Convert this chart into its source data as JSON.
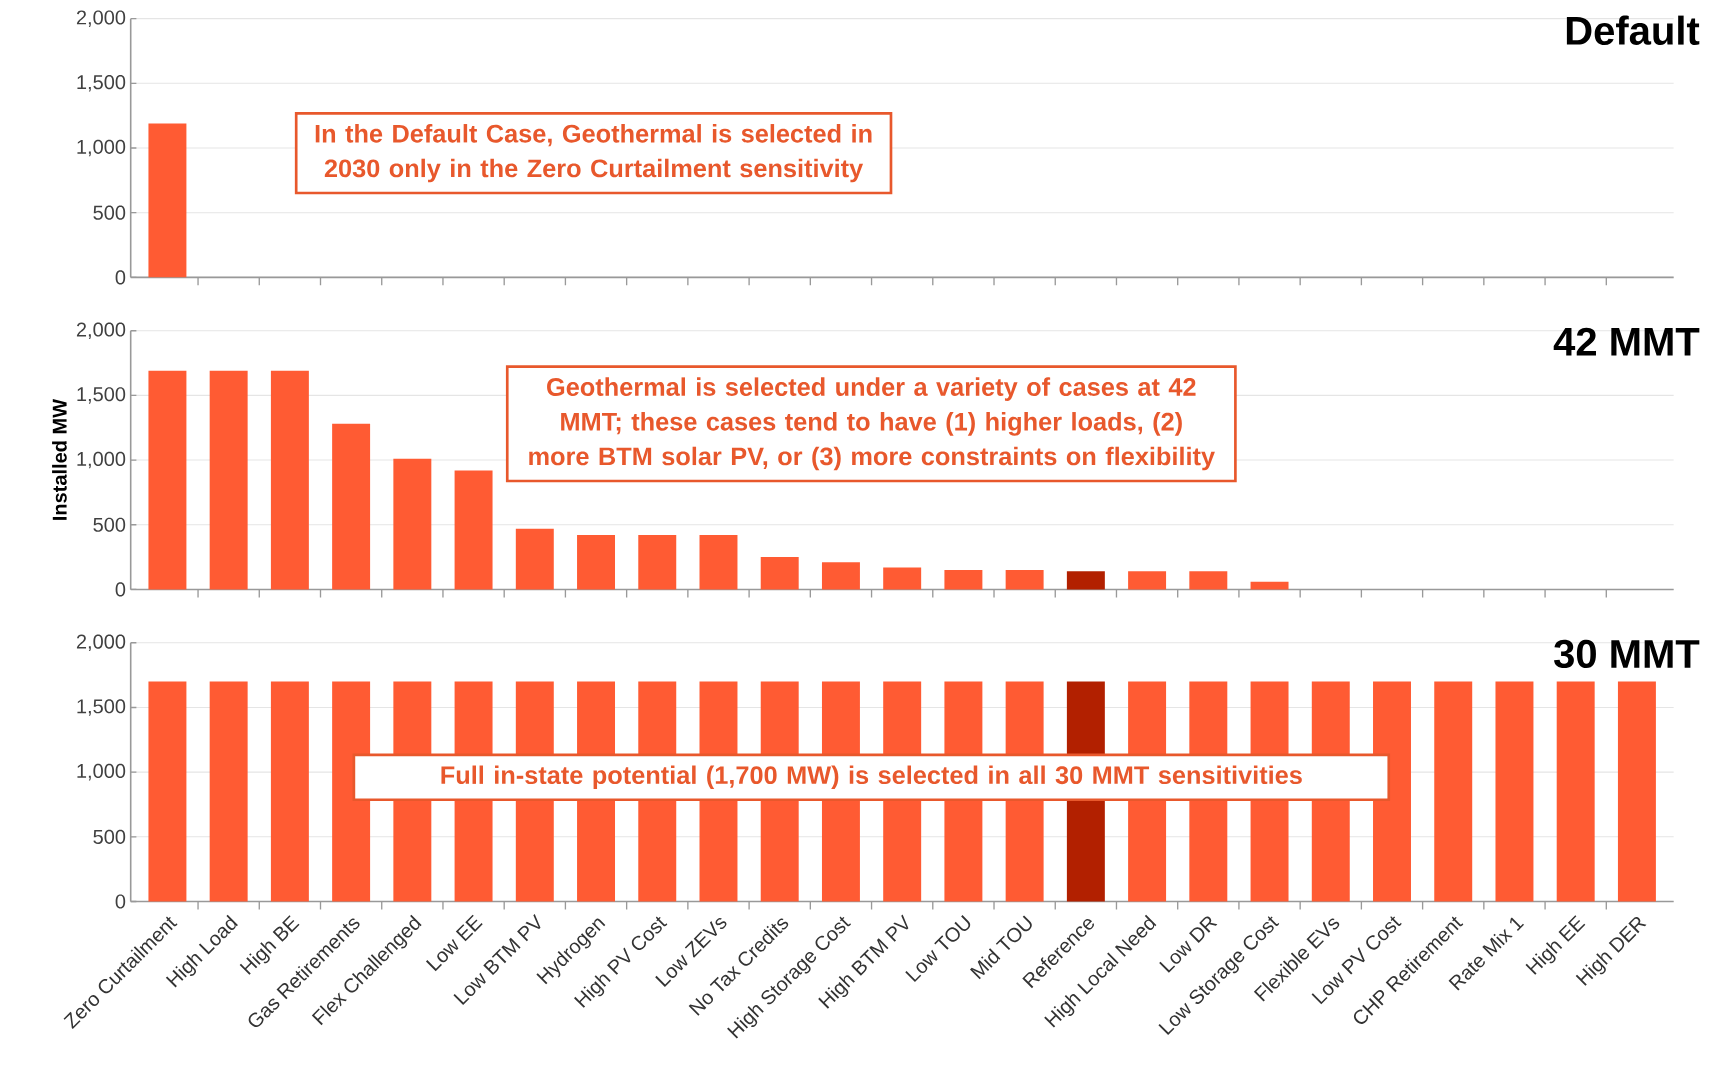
{
  "chart_data": [
    {
      "type": "bar",
      "title": "Default",
      "categories": [
        null,
        null,
        null,
        null,
        null,
        null,
        null,
        null,
        null,
        null,
        null,
        null,
        null,
        null,
        null,
        null,
        null,
        null,
        null,
        null,
        null,
        null,
        null,
        null,
        null
      ],
      "values": [
        1190,
        0,
        0,
        0,
        0,
        0,
        0,
        0,
        0,
        0,
        0,
        0,
        0,
        0,
        0,
        0,
        0,
        0,
        0,
        0,
        0,
        0,
        0,
        0,
        0
      ],
      "colors": [
        "#ff5b33",
        "#ff5b33",
        "#ff5b33",
        "#ff5b33",
        "#ff5b33",
        "#ff5b33",
        "#ff5b33",
        "#ff5b33",
        "#ff5b33",
        "#ff5b33",
        "#ff5b33",
        "#ff5b33",
        "#ff5b33",
        "#ff5b33",
        "#ff5b33",
        "#b22000",
        "#ff5b33",
        "#ff5b33",
        "#ff5b33",
        "#ff5b33",
        "#ff5b33",
        "#ff5b33",
        "#ff5b33",
        "#ff5b33",
        "#ff5b33"
      ],
      "ylim": [
        0,
        2000
      ],
      "yticks": [
        0,
        {
          "value": 500,
          "label": "500"
        },
        {
          "value": 1000,
          "label": "1,000"
        },
        {
          "value": 1500,
          "label": "1,500"
        },
        {
          "value": 2000,
          "label": "2,000"
        }
      ],
      "grid": "y",
      "annotations": [
        "In the Default Case, Geothermal is selected in 2030 only in the Zero Curtailment sensitivity"
      ]
    },
    {
      "type": "bar",
      "title": "42 MMT",
      "ylabel": "Installed MW",
      "categories": [
        null,
        null,
        null,
        null,
        null,
        null,
        null,
        null,
        null,
        null,
        null,
        null,
        null,
        null,
        null,
        null,
        null,
        null,
        null,
        null,
        null,
        null,
        null,
        null,
        null
      ],
      "values": [
        1690,
        1690,
        1690,
        1280,
        1010,
        920,
        470,
        420,
        420,
        420,
        250,
        210,
        170,
        150,
        150,
        140,
        140,
        140,
        60,
        0,
        0,
        0,
        0,
        0,
        0
      ],
      "colors": [
        "#ff5b33",
        "#ff5b33",
        "#ff5b33",
        "#ff5b33",
        "#ff5b33",
        "#ff5b33",
        "#ff5b33",
        "#ff5b33",
        "#ff5b33",
        "#ff5b33",
        "#ff5b33",
        "#ff5b33",
        "#ff5b33",
        "#ff5b33",
        "#ff5b33",
        "#b22000",
        "#ff5b33",
        "#ff5b33",
        "#ff5b33",
        "#ff5b33",
        "#ff5b33",
        "#ff5b33",
        "#ff5b33",
        "#ff5b33",
        "#ff5b33"
      ],
      "ylim": [
        0,
        2000
      ],
      "yticks": [
        0,
        {
          "value": 500,
          "label": "500"
        },
        {
          "value": 1000,
          "label": "1,000"
        },
        {
          "value": 1500,
          "label": "1,500"
        },
        {
          "value": 2000,
          "label": "2,000"
        }
      ],
      "grid": "y",
      "annotations": [
        "Geothermal is selected under a variety of cases at 42 MMT; these cases tend to have (1) higher loads, (2) more BTM solar PV, or (3) more constraints on flexibility"
      ]
    },
    {
      "type": "bar",
      "title": "30 MMT",
      "categories": [
        "Zero Curtailment",
        "High Load",
        "High BE",
        "Gas Retirements",
        "Flex Challenged",
        "Low EE",
        "Low BTM PV",
        "Hydrogen",
        "High PV Cost",
        "Low ZEVs",
        "No Tax Credits",
        "High Storage Cost",
        "High BTM PV",
        "Low TOU",
        "Mid TOU",
        "Reference",
        "High Local Need",
        "Low DR",
        "Low Storage Cost",
        "Flexible EVs",
        "Low PV Cost",
        "CHP Retirement",
        "Rate Mix 1",
        "High EE",
        "High DER"
      ],
      "values": [
        1700,
        1700,
        1700,
        1700,
        1700,
        1700,
        1700,
        1700,
        1700,
        1700,
        1700,
        1700,
        1700,
        1700,
        1700,
        1700,
        1700,
        1700,
        1700,
        1700,
        1700,
        1700,
        1700,
        1700,
        1700
      ],
      "colors": [
        "#ff5b33",
        "#ff5b33",
        "#ff5b33",
        "#ff5b33",
        "#ff5b33",
        "#ff5b33",
        "#ff5b33",
        "#ff5b33",
        "#ff5b33",
        "#ff5b33",
        "#ff5b33",
        "#ff5b33",
        "#ff5b33",
        "#ff5b33",
        "#ff5b33",
        "#b22000",
        "#ff5b33",
        "#ff5b33",
        "#ff5b33",
        "#ff5b33",
        "#ff5b33",
        "#ff5b33",
        "#ff5b33",
        "#ff5b33",
        "#ff5b33"
      ],
      "ylim": [
        0,
        2000
      ],
      "yticks": [
        0,
        {
          "value": 500,
          "label": "500"
        },
        {
          "value": 1000,
          "label": "1,000"
        },
        {
          "value": 1500,
          "label": "1,500"
        },
        {
          "value": 2000,
          "label": "2,000"
        }
      ],
      "grid": "y",
      "annotations": [
        "Full in-state potential (1,700 MW) is selected in all 30 MMT sensitivities"
      ]
    }
  ]
}
